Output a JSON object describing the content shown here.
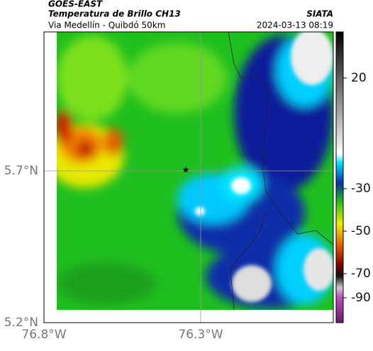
{
  "header": {
    "satellite": "GOES-EAST",
    "product": "Temperatura de Brillo CH13",
    "route": "Via Medellín - Quibdó 50km",
    "source": "SIATA",
    "datetime": "2024-03-13 08:19"
  },
  "map": {
    "xticks": [
      "76.8°W",
      "76.3°W"
    ],
    "yticks": [
      "5.7°N",
      "5.2°N"
    ]
  },
  "colorbar": {
    "ticks": [
      20,
      -30,
      -50,
      -70,
      -90
    ]
  }
}
